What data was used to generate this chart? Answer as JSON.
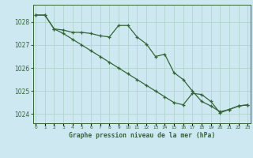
{
  "title": "Graphe pression niveau de la mer (hPa)",
  "bg_color": "#cde8f0",
  "grid_color": "#b0d4cc",
  "line_color": "#336633",
  "x_hours": [
    0,
    1,
    2,
    3,
    4,
    5,
    6,
    7,
    8,
    9,
    10,
    11,
    12,
    13,
    14,
    15,
    16,
    17,
    18,
    19,
    20,
    21,
    22,
    23
  ],
  "line1": [
    1028.3,
    1028.3,
    1027.7,
    1027.65,
    1027.55,
    1027.55,
    1027.5,
    1027.4,
    1027.35,
    1027.85,
    1027.85,
    1027.35,
    1027.05,
    1026.5,
    1026.6,
    1025.8,
    1025.5,
    1025.0,
    1024.55,
    1024.35,
    1024.1,
    1024.2,
    1024.35,
    1024.4
  ],
  "line2": [
    1028.3,
    1028.3,
    1027.7,
    1027.5,
    1027.25,
    1027.0,
    1026.75,
    1026.5,
    1026.25,
    1026.0,
    1025.75,
    1025.5,
    1025.25,
    1025.0,
    1024.75,
    1024.5,
    1024.4,
    1024.9,
    1024.85,
    1024.55,
    1024.05,
    1024.2,
    1024.35,
    1024.4
  ],
  "ylim": [
    1023.6,
    1028.75
  ],
  "yticks": [
    1024,
    1025,
    1026,
    1027,
    1028
  ],
  "xlim": [
    -0.3,
    23.3
  ]
}
